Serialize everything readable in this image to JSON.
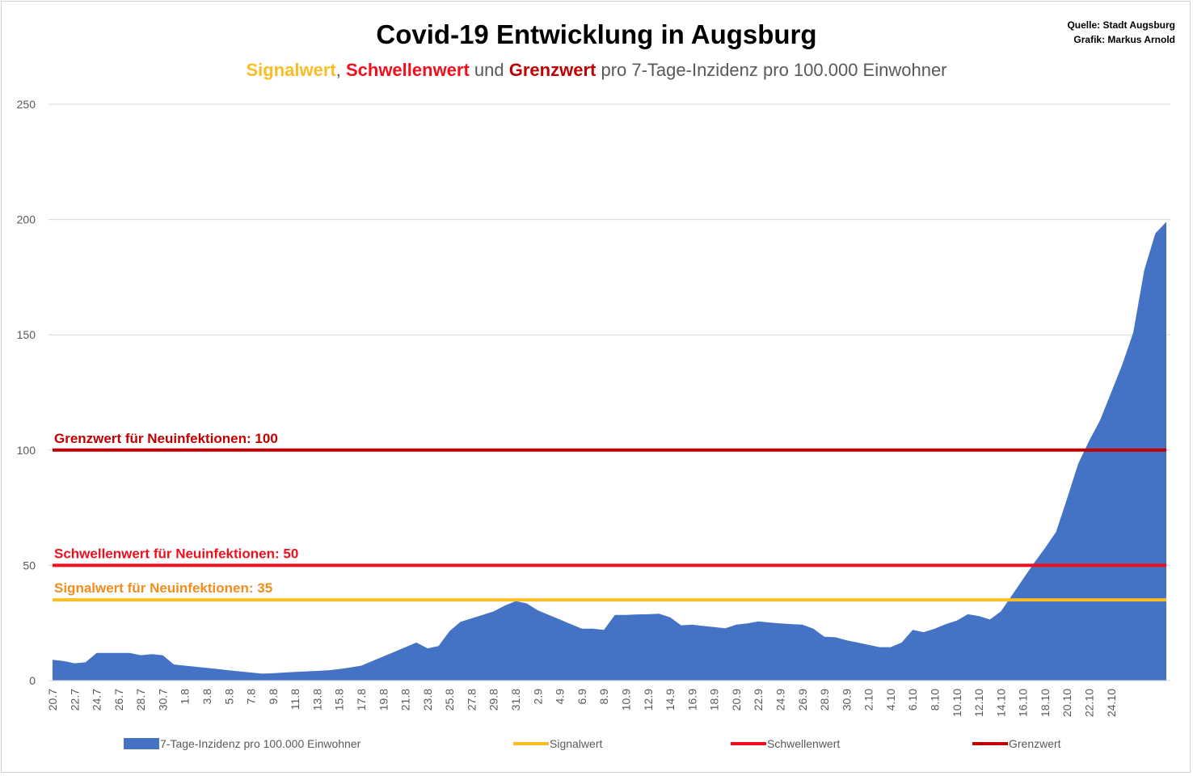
{
  "title": "Covid-19 Entwicklung in Augsburg",
  "subtitle": {
    "part1": "Signalwert",
    "sep1": ", ",
    "part2": "Schwellenwert",
    "sep2": " und ",
    "part3": "Grenzwert",
    "rest": " pro 7-Tage-Inzidenz pro 100.000 Einwohner"
  },
  "source": {
    "line1": "Quelle: Stadt Augsburg",
    "line2": "Grafik: Markus Arnold"
  },
  "colors": {
    "area": "#4472c4",
    "signal": "#fbbc24",
    "schwelle": "#f20f1d",
    "grenz": "#c00000",
    "grid": "#d9d9d9",
    "signal_label": "#f38c1c"
  },
  "chart_data": {
    "type": "area",
    "ylim": [
      0,
      250
    ],
    "yticks": [
      0,
      50,
      100,
      150,
      200,
      250
    ],
    "grid": true,
    "legend_position": "bottom",
    "x_tick_labels": [
      "20.7",
      "22.7",
      "24.7",
      "26.7",
      "28.7",
      "30.7",
      "1.8",
      "3.8",
      "5.8",
      "7.8",
      "9.8",
      "11.8",
      "13.8",
      "15.8",
      "17.8",
      "19.8",
      "21.8",
      "23.8",
      "25.8",
      "27.8",
      "29.8",
      "31.8",
      "2.9",
      "4.9",
      "6.9",
      "8.9",
      "10.9",
      "12.9",
      "14.9",
      "16.9",
      "18.9",
      "20.9",
      "22.9",
      "24.9",
      "26.9",
      "28.9",
      "30.9",
      "2.10",
      "4.10",
      "6.10",
      "8.10",
      "10.10",
      "12.10",
      "14.10",
      "16.10",
      "18.10",
      "20.10",
      "22.10",
      "24.10"
    ],
    "series": [
      {
        "name": "7-Tage-Inzidenz pro 100.000 Einwohner",
        "values": [
          9,
          8.5,
          7.5,
          8,
          12,
          12,
          12,
          12,
          11,
          11.5,
          11,
          7,
          6.5,
          6,
          5.5,
          5,
          4.5,
          4,
          3.5,
          3,
          3.2,
          3.5,
          3.8,
          4,
          4.2,
          4.5,
          5,
          5.7,
          6.5,
          8.5,
          10.5,
          12.5,
          14.5,
          16.5,
          14,
          15,
          21.5,
          25.5,
          27,
          28.5,
          30,
          32.5,
          34.5,
          33.5,
          30.5,
          28.5,
          26.5,
          24.5,
          22.5,
          22.5,
          22,
          28.5,
          28.5,
          28.7,
          28.8,
          29,
          27.5,
          24,
          24.3,
          23.7,
          23.2,
          22.7,
          24.3,
          24.8,
          25.7,
          25.2,
          24.8,
          24.5,
          24.3,
          22.5,
          19,
          18.8,
          17.5,
          16.5,
          15.5,
          14.5,
          14.5,
          16.5,
          22,
          21,
          22.5,
          24.5,
          26,
          28.8,
          28,
          26.5,
          30,
          37,
          44,
          51,
          57.5,
          64.5,
          79,
          94,
          104,
          113,
          125,
          137,
          151,
          178,
          194,
          199
        ]
      },
      {
        "name": "Signalwert",
        "value": 35
      },
      {
        "name": "Schwellenwert",
        "value": 50
      },
      {
        "name": "Grenzwert",
        "value": 100
      }
    ],
    "annotations": [
      "Grenzwert für Neuinfektionen: 100",
      "Schwellenwert für Neuinfektionen: 50",
      "Signalwert für Neuinfektionen: 35"
    ]
  }
}
